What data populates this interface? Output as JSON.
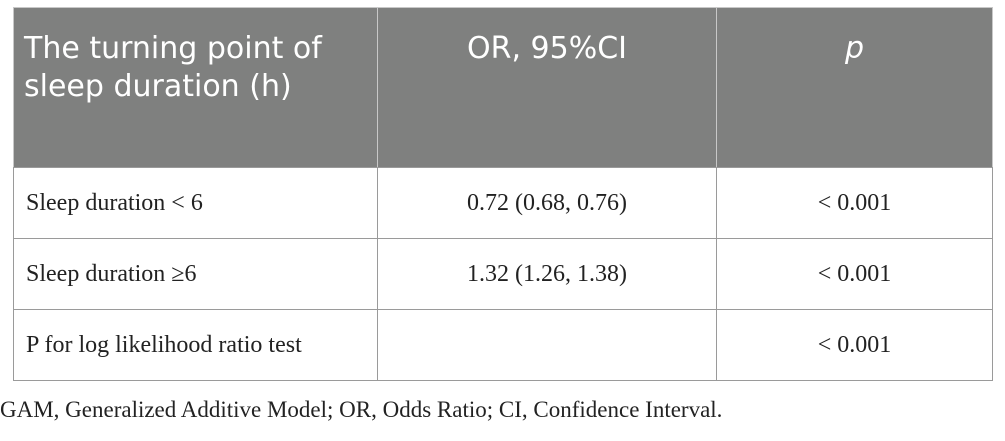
{
  "table": {
    "headers": [
      "The turning point of sleep duration (h)",
      "OR, 95%CI",
      "p"
    ],
    "rows": [
      [
        "Sleep duration < 6",
        "0.72 (0.68, 0.76)",
        "< 0.001"
      ],
      [
        "Sleep duration ≥6",
        "1.32 (1.26, 1.38)",
        "< 0.001"
      ],
      [
        "P for log likelihood ratio test",
        "",
        "< 0.001"
      ]
    ]
  },
  "footnote": "GAM, Generalized Additive Model; OR, Odds Ratio; CI, Confidence Interval.",
  "colors": {
    "header_bg": "#7f807f",
    "header_text": "#ffffff",
    "border": "#9a9a9a",
    "body_text": "#222222"
  }
}
